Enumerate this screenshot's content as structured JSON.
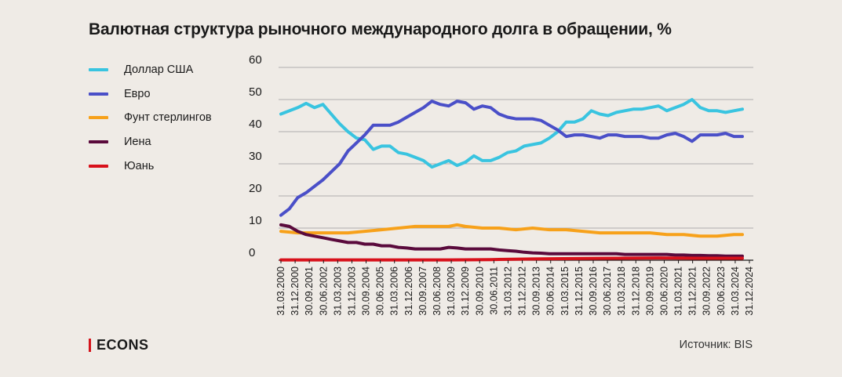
{
  "title": "Валютная структура рыночного международного долга в обращении, %",
  "source": "Источник: BIS",
  "logo": "ECONS",
  "chart_data": {
    "type": "line",
    "title": "Валютная структура рыночного международного долга в обращении, %",
    "xlabel": "",
    "ylabel": "",
    "ylim": [
      0,
      60
    ],
    "yticks": [
      0,
      10,
      20,
      30,
      40,
      50,
      60
    ],
    "grid": true,
    "legend_position": "left",
    "x_tick_labels": [
      "31.03.2000",
      "31.12.2000",
      "30.09.2001",
      "30.06.2002",
      "31.03.2003",
      "31.12.2003",
      "30.09.2004",
      "30.06.2005",
      "31.03.2006",
      "31.12.2006",
      "30.09.2007",
      "30.06.2008",
      "31.03.2009",
      "31.12.2009",
      "30.09.2010",
      "30.06.2011",
      "31.03.2012",
      "31.12.2012",
      "30.09.2013",
      "30.06.2014",
      "31.03.2015",
      "31.12.2015",
      "30.09.2016",
      "30.06.2017",
      "31.03.2018",
      "31.12.2018",
      "30.09.2019",
      "30.06.2020",
      "31.03.2021",
      "31.12.2021",
      "30.09.2022",
      "30.06.2023",
      "31.03.2024",
      "31.12.2024"
    ],
    "series": [
      {
        "name": "Доллар США",
        "color": "#39c4e0",
        "points": [
          [
            0,
            45.5
          ],
          [
            2,
            47.5
          ],
          [
            3,
            48.8
          ],
          [
            4,
            47.5
          ],
          [
            5,
            48.5
          ],
          [
            6,
            45.5
          ],
          [
            7,
            42.5
          ],
          [
            8,
            40
          ],
          [
            9,
            38
          ],
          [
            10,
            37.5
          ],
          [
            11,
            34.5
          ],
          [
            12,
            35.5
          ],
          [
            13,
            35.5
          ],
          [
            14,
            33.5
          ],
          [
            15,
            33
          ],
          [
            16,
            32
          ],
          [
            17,
            31
          ],
          [
            18,
            29
          ],
          [
            19,
            30
          ],
          [
            20,
            31
          ],
          [
            21,
            29.5
          ],
          [
            22,
            30.5
          ],
          [
            23,
            32.5
          ],
          [
            24,
            31
          ],
          [
            25,
            31
          ],
          [
            26,
            32
          ],
          [
            27,
            33.5
          ],
          [
            28,
            34
          ],
          [
            29,
            35.5
          ],
          [
            30,
            36
          ],
          [
            31,
            36.5
          ],
          [
            32,
            38
          ],
          [
            33,
            40
          ],
          [
            34,
            43
          ],
          [
            35,
            43
          ],
          [
            36,
            44
          ],
          [
            37,
            46.5
          ],
          [
            38,
            45.5
          ],
          [
            39,
            45
          ],
          [
            40,
            46
          ],
          [
            41,
            46.5
          ],
          [
            42,
            47
          ],
          [
            43,
            47
          ],
          [
            44,
            47.5
          ],
          [
            45,
            48
          ],
          [
            46,
            46.5
          ],
          [
            47,
            47.5
          ],
          [
            48,
            48.5
          ],
          [
            49,
            50
          ],
          [
            50,
            47.5
          ],
          [
            51,
            46.5
          ],
          [
            52,
            46.5
          ],
          [
            53,
            46
          ],
          [
            54,
            46.5
          ],
          [
            55,
            47
          ]
        ]
      },
      {
        "name": "Евро",
        "color": "#4a4fc8",
        "points": [
          [
            0,
            14
          ],
          [
            1,
            16
          ],
          [
            2,
            19.5
          ],
          [
            3,
            21
          ],
          [
            4,
            23
          ],
          [
            5,
            25
          ],
          [
            6,
            27.5
          ],
          [
            7,
            30
          ],
          [
            8,
            34
          ],
          [
            9,
            36.5
          ],
          [
            10,
            39
          ],
          [
            11,
            42
          ],
          [
            12,
            42
          ],
          [
            13,
            42
          ],
          [
            14,
            43
          ],
          [
            15,
            44.5
          ],
          [
            16,
            46
          ],
          [
            17,
            47.5
          ],
          [
            18,
            49.5
          ],
          [
            19,
            48.5
          ],
          [
            20,
            48
          ],
          [
            21,
            49.5
          ],
          [
            22,
            49
          ],
          [
            23,
            47
          ],
          [
            24,
            48
          ],
          [
            25,
            47.5
          ],
          [
            26,
            45.5
          ],
          [
            27,
            44.5
          ],
          [
            28,
            44
          ],
          [
            29,
            44
          ],
          [
            30,
            44
          ],
          [
            31,
            43.5
          ],
          [
            32,
            42
          ],
          [
            33,
            40.5
          ],
          [
            34,
            38.5
          ],
          [
            35,
            39
          ],
          [
            36,
            39
          ],
          [
            37,
            38.5
          ],
          [
            38,
            38
          ],
          [
            39,
            39
          ],
          [
            40,
            39
          ],
          [
            41,
            38.5
          ],
          [
            42,
            38.5
          ],
          [
            43,
            38.5
          ],
          [
            44,
            38
          ],
          [
            45,
            38
          ],
          [
            46,
            39
          ],
          [
            47,
            39.5
          ],
          [
            48,
            38.5
          ],
          [
            49,
            37
          ],
          [
            50,
            39
          ],
          [
            51,
            39
          ],
          [
            52,
            39
          ],
          [
            53,
            39.5
          ],
          [
            54,
            38.5
          ],
          [
            55,
            38.5
          ]
        ]
      },
      {
        "name": "Фунт стерлингов",
        "color": "#f7a11a",
        "points": [
          [
            0,
            9
          ],
          [
            2,
            8.5
          ],
          [
            4,
            8.5
          ],
          [
            6,
            8.5
          ],
          [
            8,
            8.5
          ],
          [
            10,
            9
          ],
          [
            12,
            9.5
          ],
          [
            14,
            10
          ],
          [
            16,
            10.5
          ],
          [
            18,
            10.5
          ],
          [
            20,
            10.5
          ],
          [
            21,
            11
          ],
          [
            22,
            10.5
          ],
          [
            24,
            10
          ],
          [
            26,
            10
          ],
          [
            28,
            9.5
          ],
          [
            30,
            10
          ],
          [
            32,
            9.5
          ],
          [
            34,
            9.5
          ],
          [
            36,
            9
          ],
          [
            38,
            8.5
          ],
          [
            40,
            8.5
          ],
          [
            42,
            8.5
          ],
          [
            44,
            8.5
          ],
          [
            46,
            8
          ],
          [
            48,
            8
          ],
          [
            50,
            7.5
          ],
          [
            52,
            7.5
          ],
          [
            54,
            8
          ],
          [
            55,
            8
          ]
        ]
      },
      {
        "name": "Иена",
        "color": "#5a0a3c",
        "points": [
          [
            0,
            11
          ],
          [
            1,
            10.5
          ],
          [
            2,
            9
          ],
          [
            3,
            8
          ],
          [
            4,
            7.5
          ],
          [
            5,
            7
          ],
          [
            6,
            6.5
          ],
          [
            7,
            6
          ],
          [
            8,
            5.5
          ],
          [
            9,
            5.5
          ],
          [
            10,
            5
          ],
          [
            11,
            5
          ],
          [
            12,
            4.5
          ],
          [
            13,
            4.5
          ],
          [
            14,
            4
          ],
          [
            15,
            3.8
          ],
          [
            16,
            3.5
          ],
          [
            17,
            3.5
          ],
          [
            18,
            3.5
          ],
          [
            19,
            3.5
          ],
          [
            20,
            4
          ],
          [
            21,
            3.8
          ],
          [
            22,
            3.5
          ],
          [
            23,
            3.5
          ],
          [
            24,
            3.5
          ],
          [
            25,
            3.5
          ],
          [
            26,
            3.2
          ],
          [
            27,
            3
          ],
          [
            28,
            2.8
          ],
          [
            29,
            2.5
          ],
          [
            30,
            2.3
          ],
          [
            31,
            2.2
          ],
          [
            32,
            2
          ],
          [
            33,
            2
          ],
          [
            34,
            2
          ],
          [
            35,
            2
          ],
          [
            36,
            2
          ],
          [
            37,
            2
          ],
          [
            38,
            2
          ],
          [
            39,
            2
          ],
          [
            40,
            2
          ],
          [
            41,
            1.8
          ],
          [
            42,
            1.8
          ],
          [
            43,
            1.8
          ],
          [
            44,
            1.8
          ],
          [
            45,
            1.8
          ],
          [
            46,
            1.8
          ],
          [
            47,
            1.6
          ],
          [
            48,
            1.6
          ],
          [
            49,
            1.5
          ],
          [
            50,
            1.5
          ],
          [
            51,
            1.4
          ],
          [
            52,
            1.4
          ],
          [
            53,
            1.3
          ],
          [
            54,
            1.3
          ],
          [
            55,
            1.3
          ]
        ]
      },
      {
        "name": "Юань",
        "color": "#d8111b",
        "points": [
          [
            0,
            0.1
          ],
          [
            20,
            0.1
          ],
          [
            25,
            0.2
          ],
          [
            30,
            0.4
          ],
          [
            35,
            0.5
          ],
          [
            40,
            0.6
          ],
          [
            45,
            0.7
          ],
          [
            50,
            0.6
          ],
          [
            55,
            0.6
          ]
        ]
      }
    ]
  }
}
